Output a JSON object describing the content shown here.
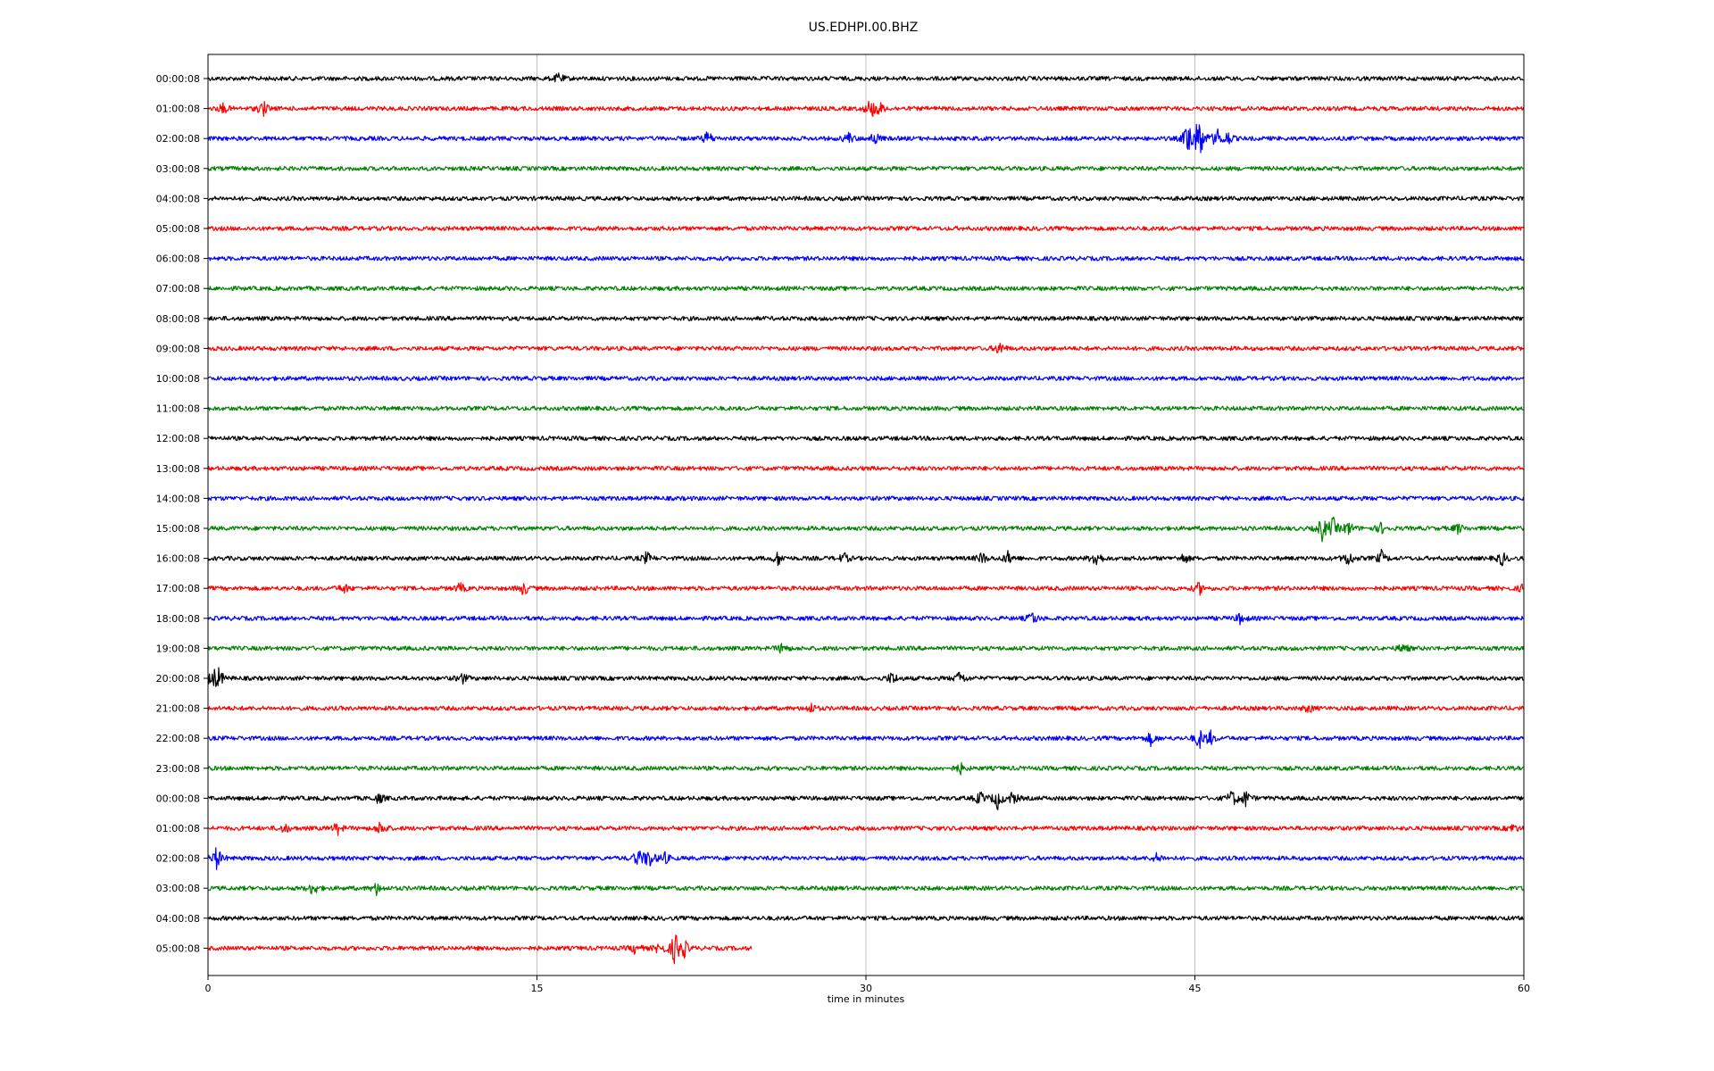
{
  "chart_data": {
    "type": "line",
    "title": "US.EDHPI.00.BHZ",
    "xlabel": "time in minutes",
    "ylabel": "",
    "xlim": [
      0,
      60
    ],
    "xticks": [
      "0",
      "15",
      "30",
      "45",
      "60"
    ],
    "grid": "vertical lines at x ticks",
    "trace_colors": [
      "#000000",
      "#ff0000",
      "#0000ff",
      "#008000"
    ],
    "rows": [
      {
        "label": "00:00:08",
        "end": 60,
        "events": [
          [
            16,
            6
          ]
        ]
      },
      {
        "label": "01:00:08",
        "end": 60,
        "events": [
          [
            0.7,
            6
          ],
          [
            2.5,
            10
          ],
          [
            30.2,
            12
          ],
          [
            30.6,
            8
          ]
        ]
      },
      {
        "label": "02:00:08",
        "end": 60,
        "events": [
          [
            22.8,
            9
          ],
          [
            29.2,
            7
          ],
          [
            30.4,
            8
          ],
          [
            44.7,
            24
          ],
          [
            45.2,
            30
          ],
          [
            46,
            12
          ],
          [
            46.5,
            8
          ]
        ]
      },
      {
        "label": "03:00:08",
        "end": 60,
        "events": []
      },
      {
        "label": "04:00:08",
        "end": 60,
        "events": []
      },
      {
        "label": "05:00:08",
        "end": 60,
        "events": []
      },
      {
        "label": "06:00:08",
        "end": 60,
        "events": []
      },
      {
        "label": "07:00:08",
        "end": 60,
        "events": []
      },
      {
        "label": "08:00:08",
        "end": 60,
        "events": []
      },
      {
        "label": "09:00:08",
        "end": 60,
        "events": [
          [
            36.1,
            8
          ]
        ]
      },
      {
        "label": "10:00:08",
        "end": 60,
        "events": []
      },
      {
        "label": "11:00:08",
        "end": 60,
        "events": []
      },
      {
        "label": "12:00:08",
        "end": 60,
        "events": []
      },
      {
        "label": "13:00:08",
        "end": 60,
        "events": []
      },
      {
        "label": "14:00:08",
        "end": 60,
        "events": []
      },
      {
        "label": "15:00:08",
        "end": 60,
        "events": [
          [
            50.8,
            14
          ],
          [
            51.3,
            12
          ],
          [
            52,
            8
          ],
          [
            53.5,
            6
          ],
          [
            57,
            6
          ]
        ]
      },
      {
        "label": "16:00:08",
        "end": 60,
        "events": [
          [
            20,
            7
          ],
          [
            26,
            8
          ],
          [
            29,
            6
          ],
          [
            35.3,
            7
          ],
          [
            36.5,
            8
          ],
          [
            40.5,
            12
          ],
          [
            44.5,
            6
          ],
          [
            52,
            10
          ],
          [
            53.5,
            8
          ],
          [
            59,
            8
          ]
        ]
      },
      {
        "label": "17:00:08",
        "end": 60,
        "events": [
          [
            6.2,
            6
          ],
          [
            11.5,
            6
          ],
          [
            14.4,
            8
          ],
          [
            45.2,
            7
          ],
          [
            60,
            6
          ]
        ]
      },
      {
        "label": "18:00:08",
        "end": 60,
        "events": [
          [
            37.6,
            8
          ],
          [
            47.1,
            7
          ]
        ]
      },
      {
        "label": "19:00:08",
        "end": 60,
        "events": [
          [
            26.2,
            7
          ],
          [
            54.5,
            6
          ]
        ]
      },
      {
        "label": "20:00:08",
        "end": 60,
        "events": [
          [
            0.2,
            12
          ],
          [
            0.5,
            10
          ],
          [
            11.6,
            6
          ],
          [
            31.2,
            8
          ],
          [
            34.3,
            9
          ]
        ]
      },
      {
        "label": "21:00:08",
        "end": 60,
        "events": [
          [
            27.5,
            6
          ],
          [
            50.2,
            5
          ]
        ]
      },
      {
        "label": "22:00:08",
        "end": 60,
        "events": [
          [
            43,
            8
          ],
          [
            45.2,
            12
          ],
          [
            45.7,
            8
          ]
        ]
      },
      {
        "label": "23:00:08",
        "end": 60,
        "events": [
          [
            34.3,
            6
          ]
        ]
      },
      {
        "label": "00:00:08",
        "end": 60,
        "events": [
          [
            7.8,
            6
          ],
          [
            35.2,
            8
          ],
          [
            36,
            12
          ],
          [
            36.7,
            8
          ],
          [
            46.7,
            10
          ],
          [
            47.3,
            10
          ]
        ]
      },
      {
        "label": "01:00:08",
        "end": 60,
        "events": [
          [
            3.5,
            6
          ],
          [
            5.9,
            7
          ],
          [
            7.9,
            10
          ],
          [
            59.5,
            5
          ]
        ]
      },
      {
        "label": "02:00:08",
        "end": 60,
        "events": [
          [
            0.4,
            14
          ],
          [
            19.6,
            10
          ],
          [
            20.1,
            13
          ],
          [
            20.8,
            8
          ],
          [
            43.3,
            6
          ]
        ]
      },
      {
        "label": "03:00:08",
        "end": 60,
        "events": [
          [
            4.8,
            9
          ],
          [
            7.7,
            7
          ]
        ]
      },
      {
        "label": "04:00:08",
        "end": 60,
        "events": []
      },
      {
        "label": "05:00:08",
        "end": 24.8,
        "events": [
          [
            19.5,
            7
          ],
          [
            20.6,
            8
          ],
          [
            21.3,
            20
          ],
          [
            21.7,
            10
          ]
        ]
      }
    ]
  }
}
